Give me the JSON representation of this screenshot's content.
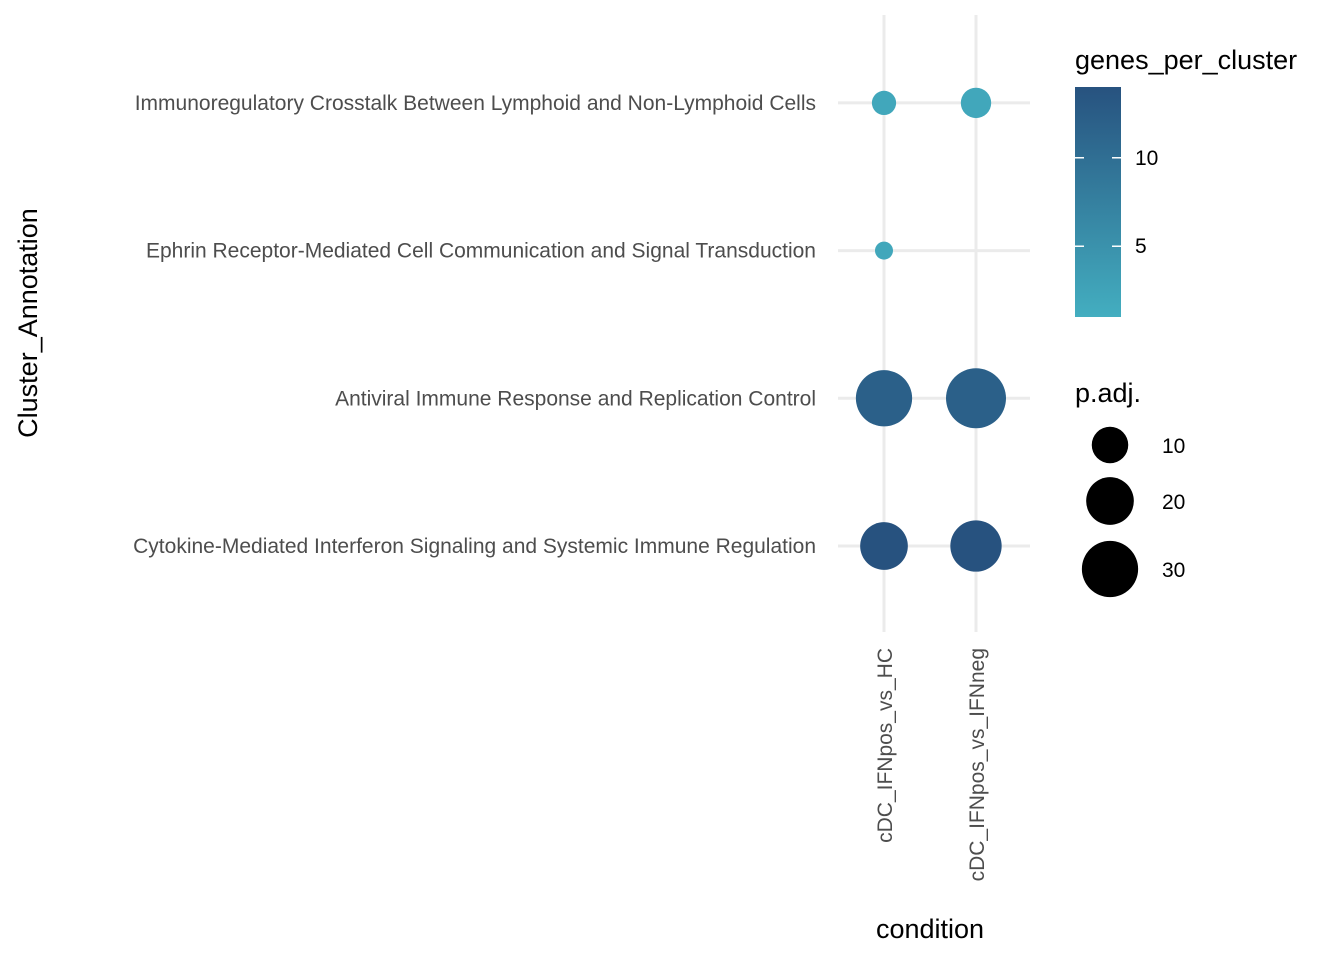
{
  "chart_data": {
    "type": "dot",
    "title": "",
    "xlabel": "condition",
    "ylabel": "Cluster_Annotation",
    "x_categories": [
      "cDC_IFNpos_vs_HC",
      "cDC_IFNpos_vs_IFNneg"
    ],
    "y_categories": [
      "Cytokine-Mediated Interferon Signaling and Systemic Immune Regulation",
      "Antiviral Immune Response and Replication Control",
      "Ephrin Receptor-Mediated Cell Communication and Signal Transduction",
      "Immunoregulatory Crosstalk Between Lymphoid and Non-Lymphoid Cells"
    ],
    "points": [
      {
        "x": "cDC_IFNpos_vs_HC",
        "y": "Immunoregulatory Crosstalk Between Lymphoid and Non-Lymphoid Cells",
        "genes_per_cluster": 2,
        "p_adj": 3
      },
      {
        "x": "cDC_IFNpos_vs_IFNneg",
        "y": "Immunoregulatory Crosstalk Between Lymphoid and Non-Lymphoid Cells",
        "genes_per_cluster": 2,
        "p_adj": 6
      },
      {
        "x": "cDC_IFNpos_vs_HC",
        "y": "Ephrin Receptor-Mediated Cell Communication and Signal Transduction",
        "genes_per_cluster": 2,
        "p_adj": 1
      },
      {
        "x": "cDC_IFNpos_vs_HC",
        "y": "Antiviral Immune Response and Replication Control",
        "genes_per_cluster": 12,
        "p_adj": 30
      },
      {
        "x": "cDC_IFNpos_vs_IFNneg",
        "y": "Antiviral Immune Response and Replication Control",
        "genes_per_cluster": 12,
        "p_adj": 35
      },
      {
        "x": "cDC_IFNpos_vs_HC",
        "y": "Cytokine-Mediated Interferon Signaling and Systemic Immune Regulation",
        "genes_per_cluster": 14,
        "p_adj": 20
      },
      {
        "x": "cDC_IFNpos_vs_IFNneg",
        "y": "Cytokine-Mediated Interferon Signaling and Systemic Immune Regulation",
        "genes_per_cluster": 14,
        "p_adj": 24
      }
    ],
    "color_legend": {
      "title": "genes_per_cluster",
      "breaks": [
        5,
        10
      ],
      "range": [
        1,
        14
      ],
      "low_color": "#43aec0",
      "high_color": "#27527f"
    },
    "size_legend": {
      "title": "p.adj.",
      "breaks": [
        10,
        20,
        30
      ],
      "range": [
        1,
        35
      ]
    },
    "grid": true,
    "legend_position": "right"
  }
}
